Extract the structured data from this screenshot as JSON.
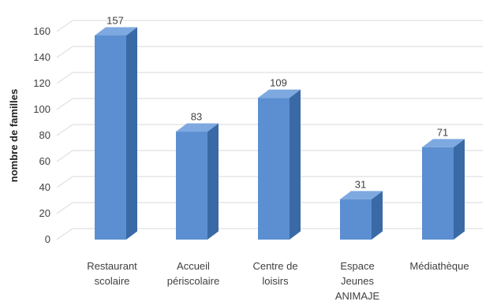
{
  "chart_data": {
    "type": "bar",
    "title": "",
    "xlabel": "",
    "ylabel": "nombre de familles",
    "ylim": [
      0,
      160
    ],
    "yticks": [
      0,
      20,
      40,
      60,
      80,
      100,
      120,
      140,
      160
    ],
    "grid": true,
    "three_d": true,
    "categories": [
      [
        "Restaurant",
        "scolaire"
      ],
      [
        "Accueil",
        "périscolaire"
      ],
      [
        "Centre de",
        "loisirs"
      ],
      [
        "Espace",
        "Jeunes",
        "ANIMAJE"
      ],
      [
        "Médiathèque"
      ]
    ],
    "values": [
      157,
      83,
      109,
      31,
      71
    ],
    "colors": {
      "bar_front": "#5b8fd1",
      "bar_side": "#3a6aa6",
      "bar_top": "#7ea9e0",
      "grid": "#d9d9d9",
      "text": "#404040"
    }
  }
}
